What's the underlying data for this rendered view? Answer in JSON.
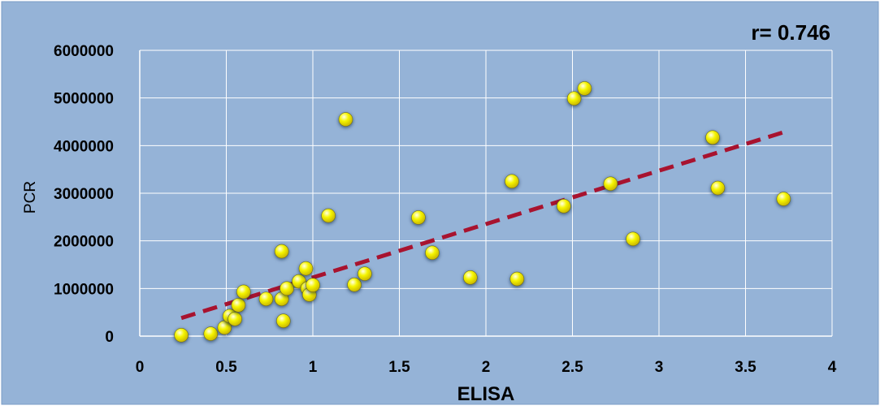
{
  "chart_data": {
    "type": "scatter",
    "annotation": "r= 0.746",
    "xlabel": "ELISA",
    "ylabel": "PCR",
    "xlim": [
      0,
      4
    ],
    "ylim": [
      0,
      6000000
    ],
    "xticks": [
      "0",
      "0.5",
      "1",
      "1.5",
      "2",
      "2.5",
      "3",
      "3.5",
      "4"
    ],
    "yticks": [
      "0",
      "1000000",
      "2000000",
      "3000000",
      "4000000",
      "5000000",
      "6000000"
    ],
    "grid": true,
    "series": [
      {
        "points": [
          [
            0.24,
            20000
          ],
          [
            0.41,
            50000
          ],
          [
            0.49,
            180000
          ],
          [
            0.52,
            420000
          ],
          [
            0.55,
            360000
          ],
          [
            0.57,
            650000
          ],
          [
            0.6,
            930000
          ],
          [
            0.73,
            780000
          ],
          [
            0.82,
            780000
          ],
          [
            0.82,
            1780000
          ],
          [
            0.83,
            320000
          ],
          [
            0.85,
            1000000
          ],
          [
            0.92,
            1150000
          ],
          [
            0.96,
            1420000
          ],
          [
            0.97,
            1000000
          ],
          [
            0.98,
            870000
          ],
          [
            1.0,
            1070000
          ],
          [
            1.09,
            2530000
          ],
          [
            1.19,
            4550000
          ],
          [
            1.24,
            1080000
          ],
          [
            1.3,
            1310000
          ],
          [
            1.61,
            2490000
          ],
          [
            1.69,
            1750000
          ],
          [
            1.91,
            1230000
          ],
          [
            2.15,
            3250000
          ],
          [
            2.18,
            1200000
          ],
          [
            2.45,
            2730000
          ],
          [
            2.51,
            4990000
          ],
          [
            2.57,
            5200000
          ],
          [
            2.72,
            3200000
          ],
          [
            2.85,
            2040000
          ],
          [
            3.31,
            4170000
          ],
          [
            3.34,
            3110000
          ],
          [
            3.72,
            2880000
          ]
        ],
        "marker_color": "#F0F000"
      }
    ],
    "trendline": {
      "from": [
        0.24,
        380000
      ],
      "to": [
        3.72,
        4280000
      ],
      "color": "#A8132F",
      "style": "dashed"
    }
  }
}
